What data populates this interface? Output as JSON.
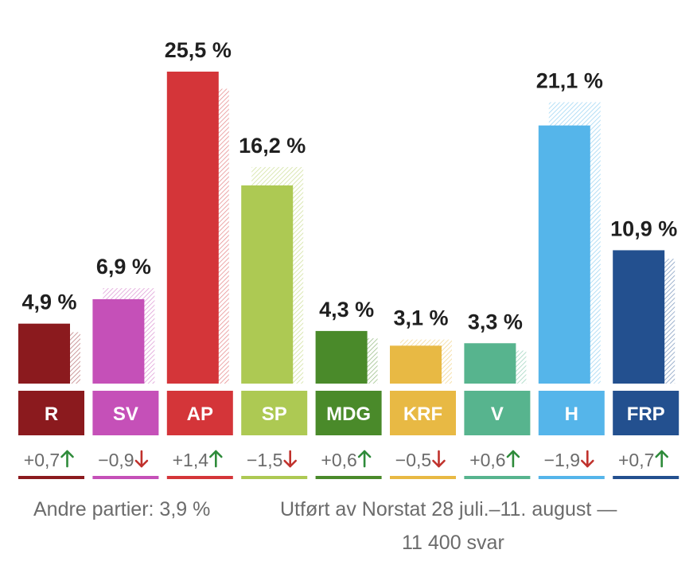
{
  "chart_data": {
    "type": "bar",
    "title": "",
    "ylim": [
      0,
      26.5
    ],
    "categories": [
      "R",
      "SV",
      "AP",
      "SP",
      "MDG",
      "KRF",
      "V",
      "H",
      "FRP"
    ],
    "series": [
      {
        "name": "current",
        "values": [
          4.9,
          6.9,
          25.5,
          16.2,
          4.3,
          3.1,
          3.3,
          21.1,
          10.9
        ]
      },
      {
        "name": "previous",
        "values": [
          4.2,
          7.8,
          24.1,
          17.7,
          3.7,
          3.6,
          2.7,
          23.0,
          10.2
        ]
      }
    ],
    "value_labels": [
      "4,9 %",
      "6,9 %",
      "25,5 %",
      "16,2 %",
      "4,3 %",
      "3,1 %",
      "3,3 %",
      "21,1 %",
      "10,9 %"
    ],
    "changes": [
      "+0,7",
      "−0,9",
      "+1,4",
      "−1,5",
      "+0,6",
      "−0,5",
      "+0,6",
      "−1,9",
      "+0,7"
    ],
    "directions": [
      "up",
      "down",
      "up",
      "down",
      "up",
      "down",
      "up",
      "down",
      "up"
    ],
    "colors": [
      "#8b1a1e",
      "#c550b8",
      "#d43539",
      "#adc953",
      "#4a8a2a",
      "#e8b944",
      "#57b48e",
      "#55b5ea",
      "#23508f"
    ],
    "arrow_up_color": "#2e8b3a",
    "arrow_down_color": "#c0312c"
  },
  "footer": {
    "others": "Andre partier: 3,9 %",
    "source": "Utført av Norstat 28 juli.–11. august  —",
    "sample": "11 400 svar"
  }
}
